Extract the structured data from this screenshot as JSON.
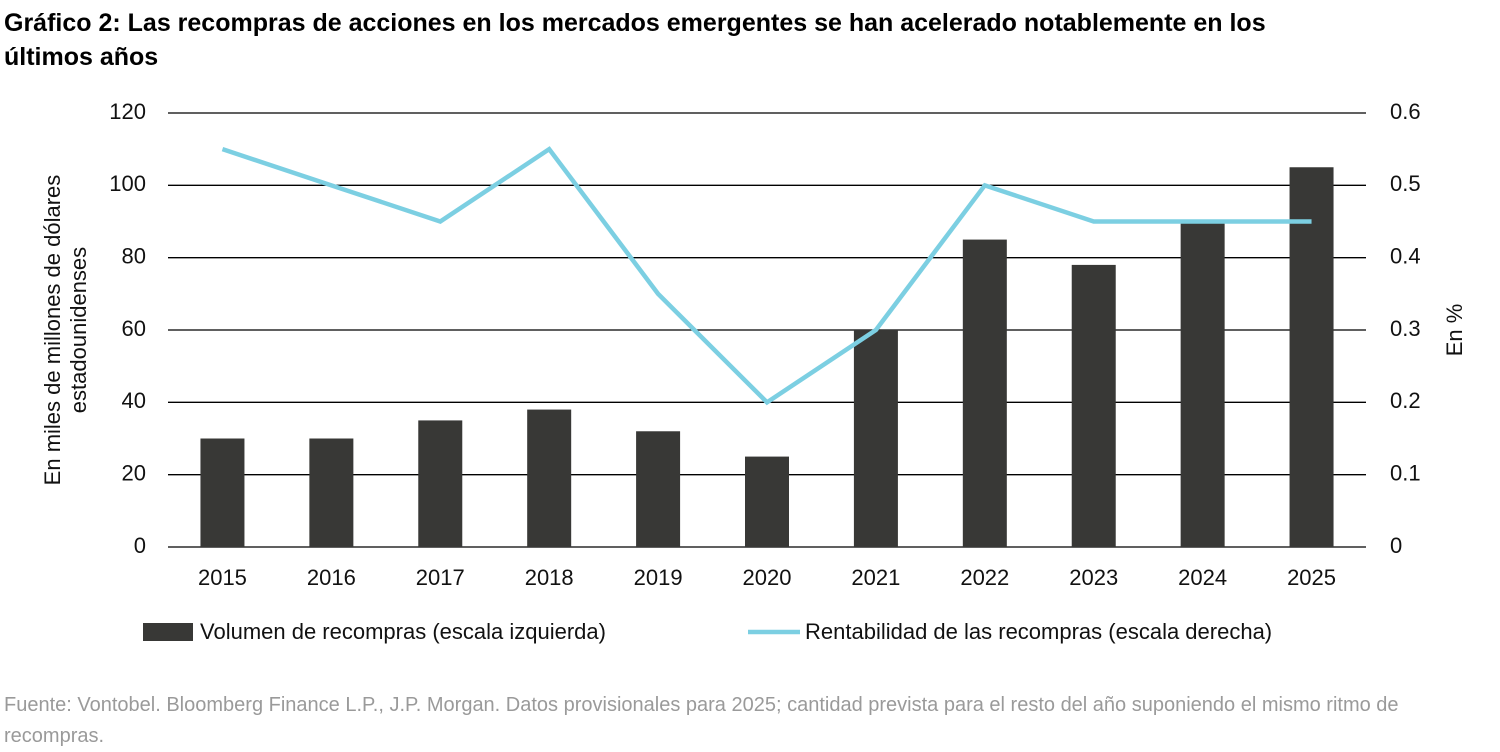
{
  "chart_data": {
    "type": "bar_line",
    "title": "Gráfico 2: Las recompras de acciones en los mercados emergentes se han acelerado notablemente en los últimos años",
    "y_label": "En miles de millones de dólares estadounidenses",
    "y2_label": "En %",
    "source": "Fuente: Vontobel. Bloomberg Finance L.P., J.P. Morgan. Datos provisionales para 2025; cantidad prevista para el resto del año suponiendo el mismo ritmo de recompras.",
    "categories": [
      "2015",
      "2016",
      "2017",
      "2018",
      "2019",
      "2020",
      "2021",
      "2022",
      "2023",
      "2024",
      "2025"
    ],
    "series": [
      {
        "name": "Volumen de recompras (escala izquierda)",
        "type": "bar",
        "color": "#383836",
        "values": [
          30,
          30,
          35,
          38,
          32,
          25,
          60,
          85,
          78,
          90,
          105
        ]
      },
      {
        "name": "Rentabilidad de las recompras (escala derecha)",
        "type": "line",
        "axis": "y2",
        "color": "#7ccfe2",
        "values": [
          0.55,
          0.5,
          0.45,
          0.55,
          0.35,
          0.2,
          0.3,
          0.5,
          0.45,
          0.45,
          0.45
        ]
      }
    ],
    "ylim": [
      0,
      120
    ],
    "yticks": [
      0,
      20,
      40,
      60,
      80,
      100,
      120
    ],
    "y2lim": [
      0,
      0.6
    ],
    "y2ticks": [
      0,
      0.1,
      0.2,
      0.3,
      0.4,
      0.5,
      0.6
    ],
    "grid": true
  }
}
